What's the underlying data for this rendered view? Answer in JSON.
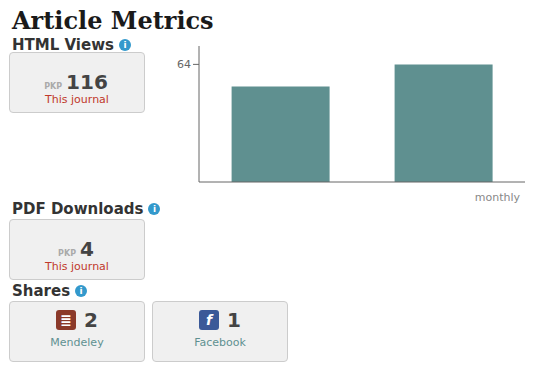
{
  "chart_data": {
    "type": "bar",
    "title": "Article Metrics",
    "categories": [
      null,
      null
    ],
    "values": [
      52,
      64
    ],
    "color": "#5f9090",
    "ylim": [
      0,
      74
    ],
    "yticks": [
      64
    ],
    "xlabel": "monthly",
    "grid": false,
    "tick_labels": "y",
    "annotations": [
      "HTML Views",
      "i",
      "PKP",
      "116",
      "This journal",
      "PDF Downloads",
      "i",
      "PKP",
      "4",
      "This journal",
      "Shares",
      "i",
      "≣",
      "2",
      "Mendeley",
      "f",
      "1",
      "Facebook"
    ]
  }
}
